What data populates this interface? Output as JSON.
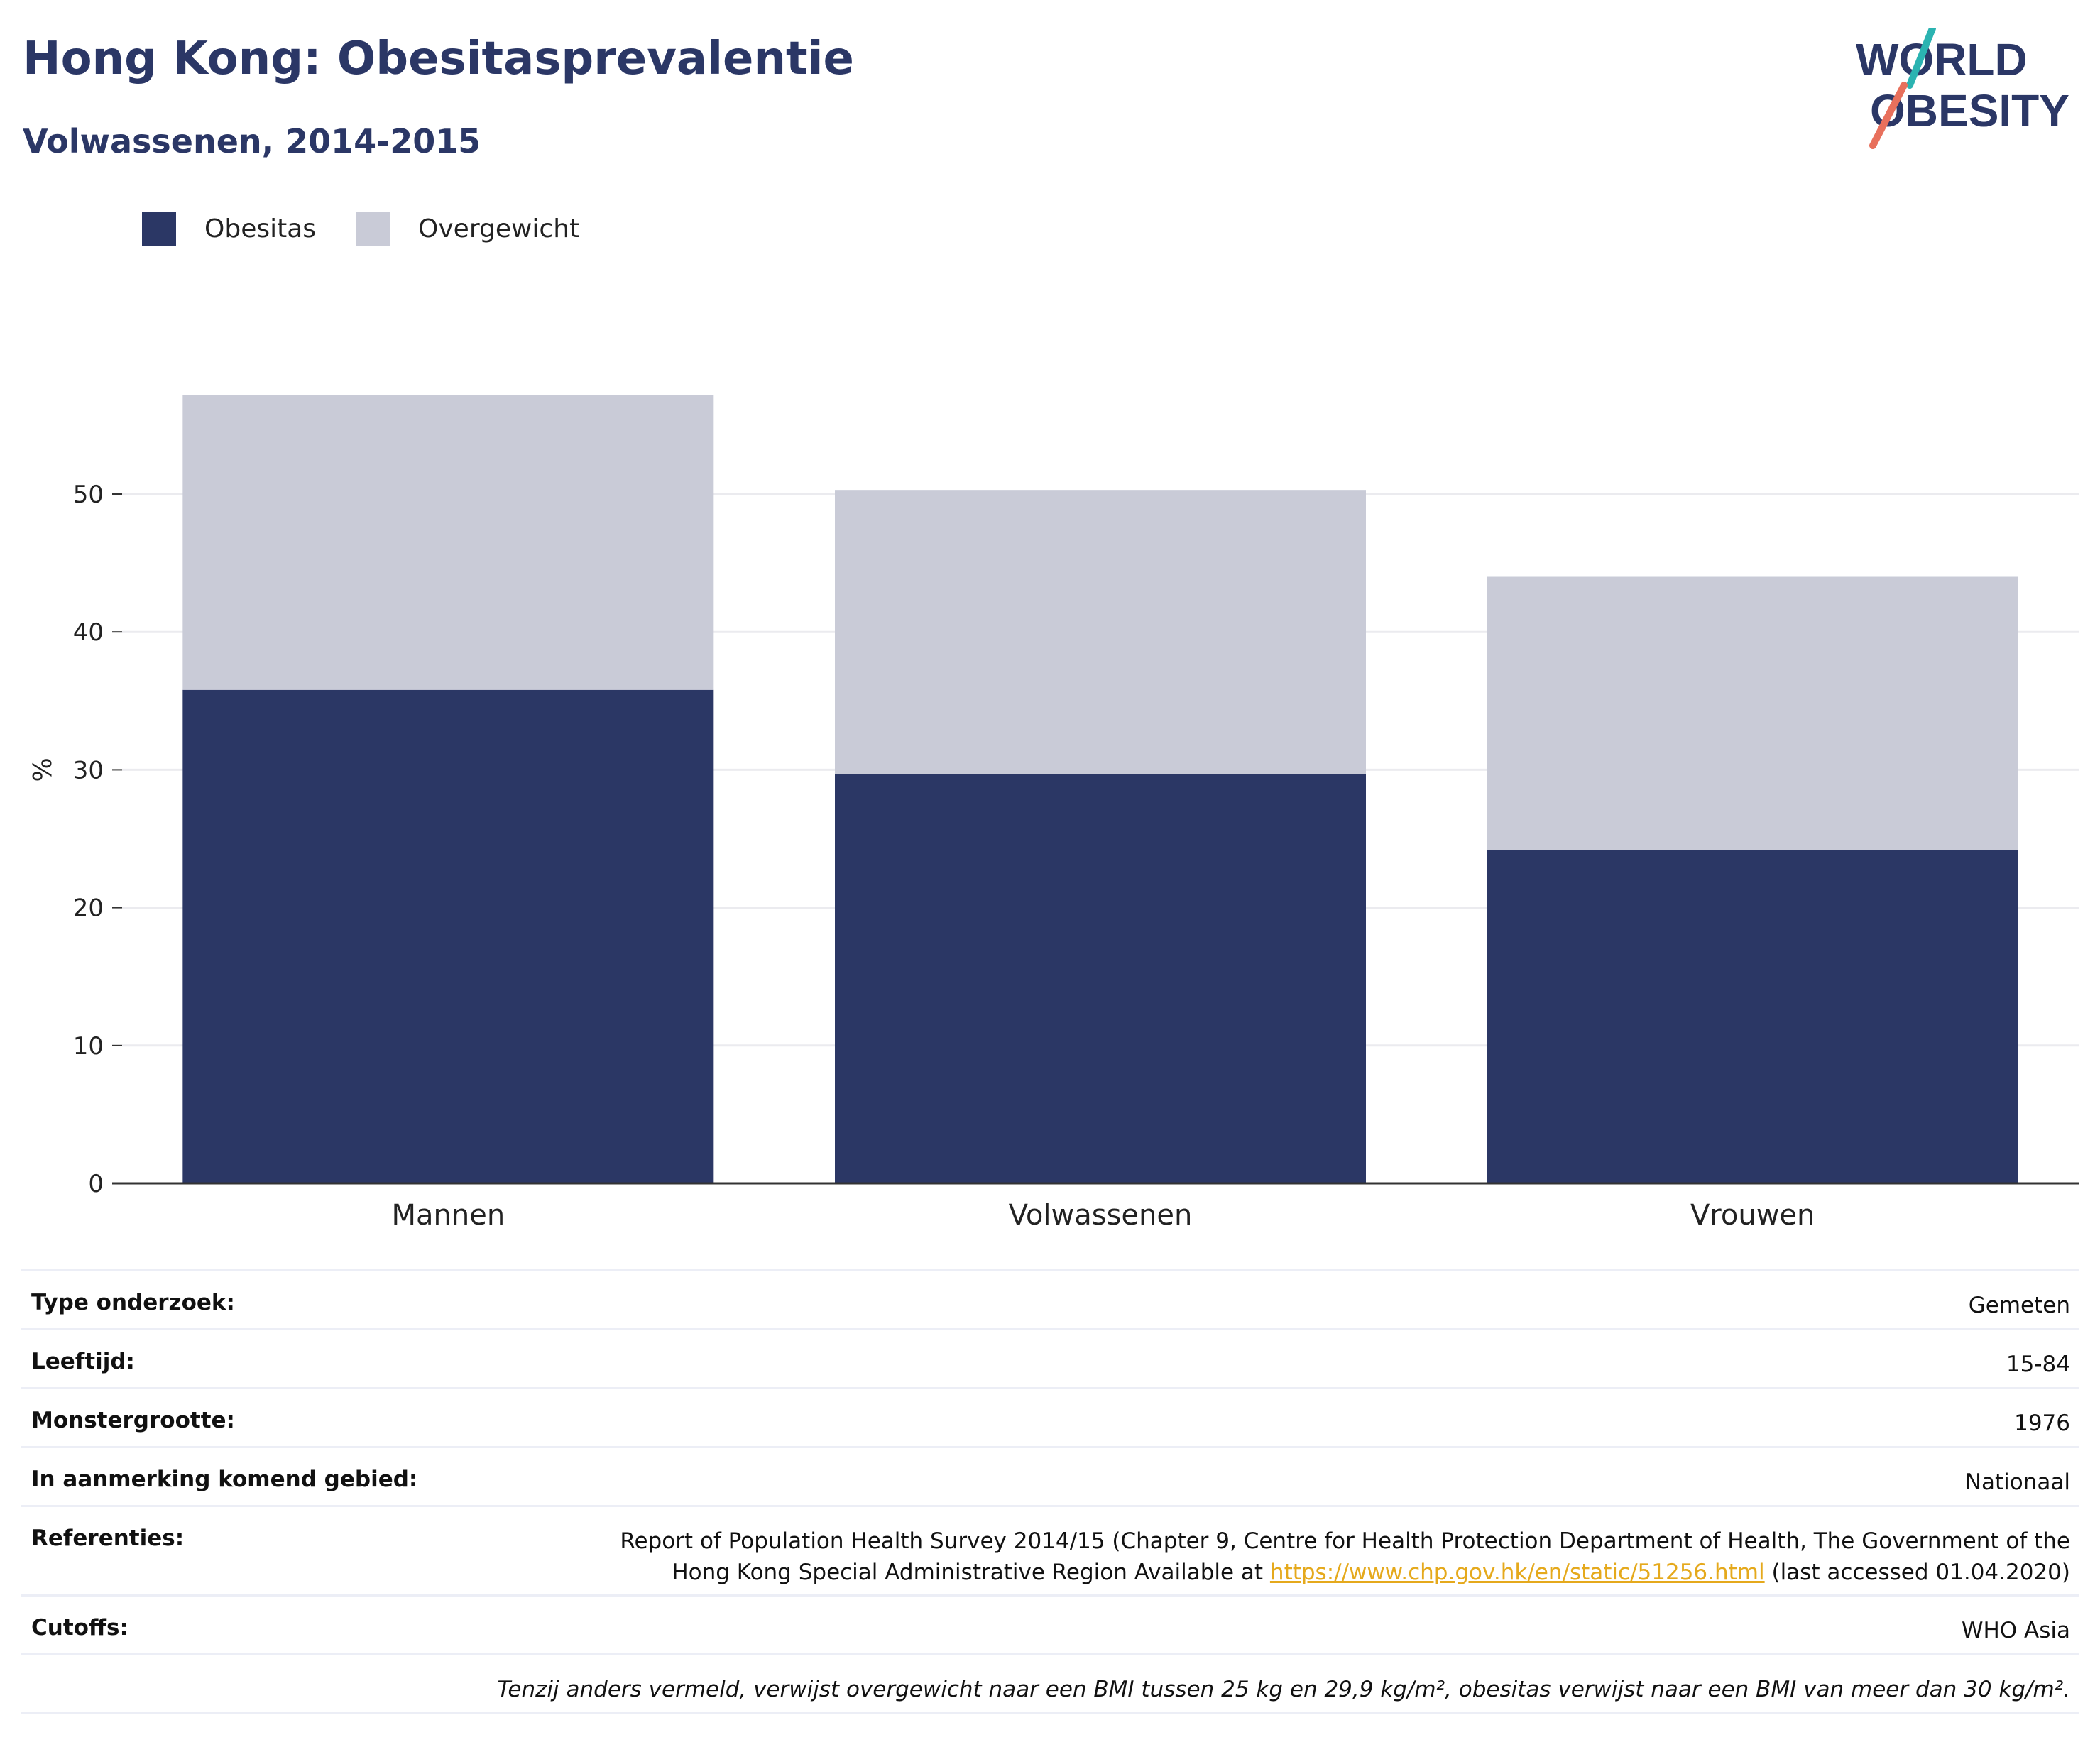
{
  "title": "Hong Kong: Obesitasprevalentie",
  "subtitle": "Volwassenen, 2014-2015",
  "logo": {
    "line1": "WORLD",
    "line2": "OBESITY"
  },
  "colors": {
    "obesitas": "#2b3765",
    "overgewicht": "#c9cbd7",
    "title": "#2b3766",
    "link": "#e5a91c",
    "grid": "#ebebef",
    "axis": "#333333"
  },
  "chart_data": {
    "type": "bar",
    "stacked": true,
    "categories": [
      "Mannen",
      "Volwassenen",
      "Vrouwen"
    ],
    "series": [
      {
        "name": "Obesitas",
        "values": [
          35.8,
          29.7,
          24.2
        ]
      },
      {
        "name": "Overgewicht",
        "values": [
          21.4,
          20.6,
          19.8
        ]
      }
    ],
    "ylabel": "%",
    "yticks": [
      0,
      10,
      20,
      30,
      40,
      50
    ],
    "ylim": [
      0,
      60
    ],
    "grid": true,
    "legend": "top-left"
  },
  "info": {
    "type_label": "Type onderzoek:",
    "type_value": "Gemeten",
    "age_label": "Leeftijd:",
    "age_value": "15-84",
    "sample_label": "Monstergrootte:",
    "sample_value": "1976",
    "area_label": "In aanmerking komend gebied:",
    "area_value": "Nationaal",
    "ref_label": "Referenties:",
    "ref_line1": "Report of Population Health Survey 2014/15 (Chapter 9, Centre for Health Protection Department of Health, The Government of the",
    "ref_line2_pre": "Hong Kong Special Administrative Region Available at ",
    "ref_link": "https://www.chp.gov.hk/en/static/51256.html",
    "ref_line2_post": " (last accessed 01.04.2020)",
    "cutoffs_label": "Cutoffs:",
    "cutoffs_value": "WHO Asia",
    "footnote": "Tenzij anders vermeld, verwijst overgewicht naar een BMI tussen 25 kg en 29,9 kg/m², obesitas verwijst naar een BMI van meer dan 30 kg/m²."
  }
}
